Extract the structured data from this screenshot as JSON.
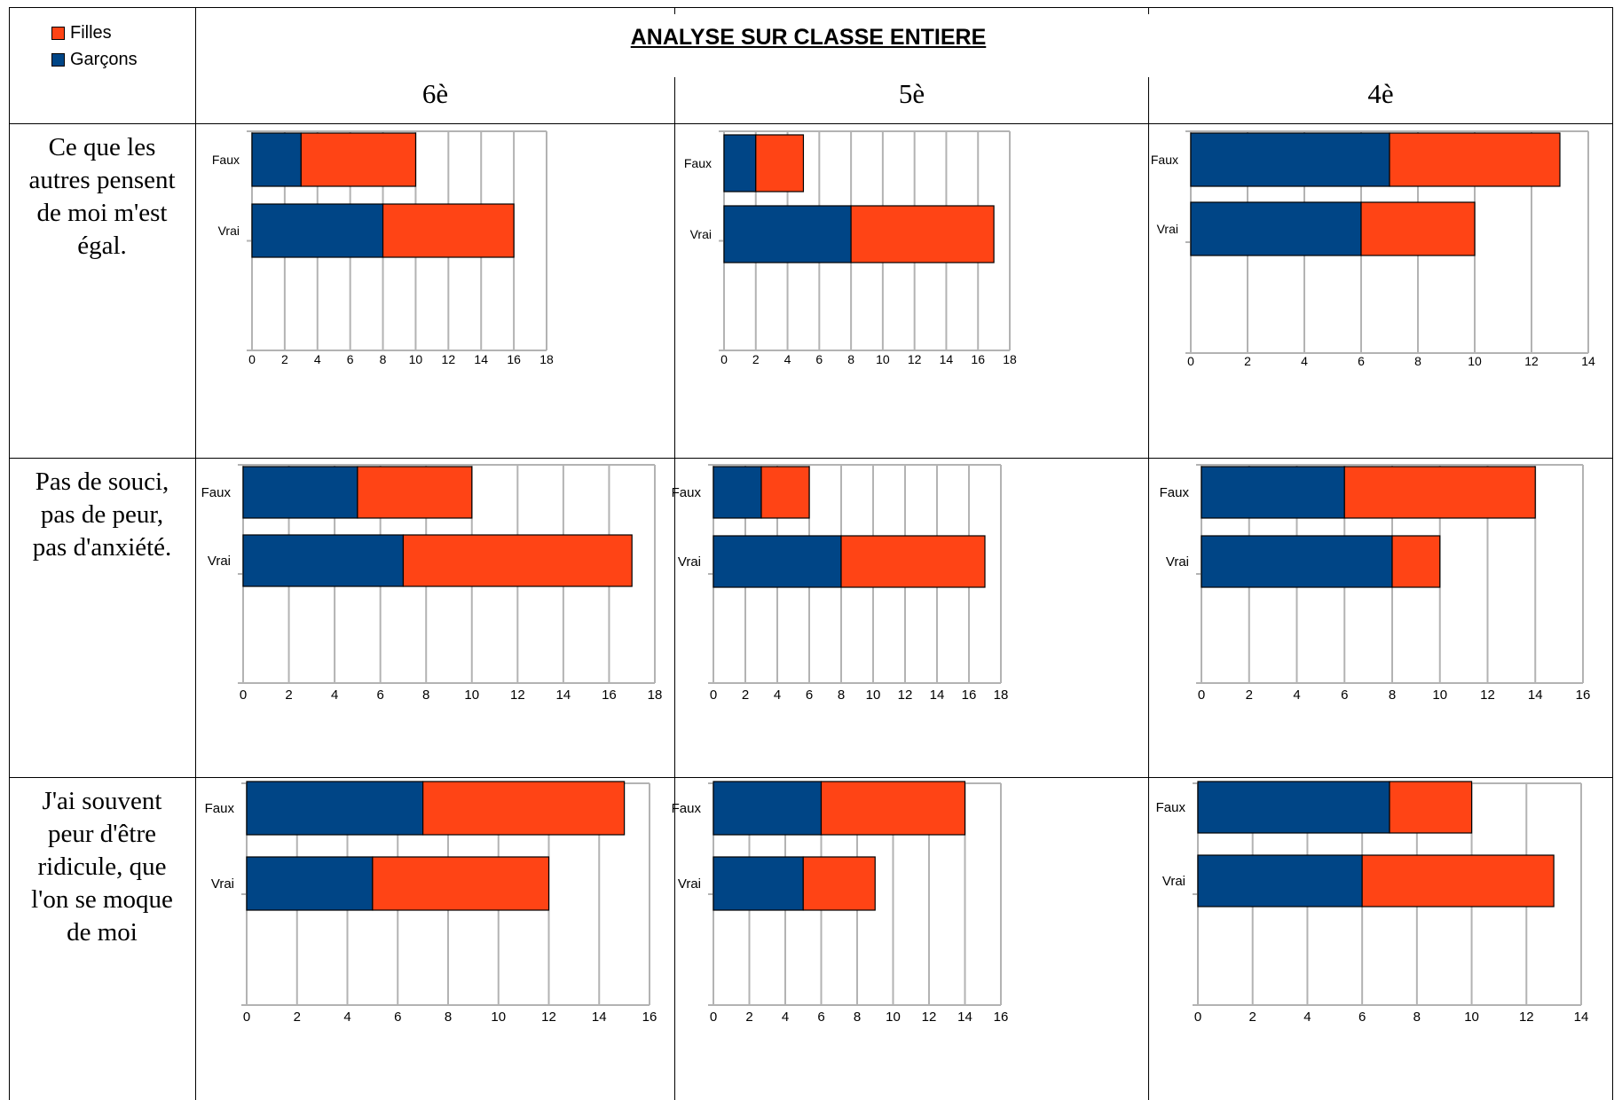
{
  "legend": [
    {
      "name": "Filles",
      "color": "#ff4415"
    },
    {
      "name": "Garçons",
      "color": "#004586"
    }
  ],
  "title": "ANALYSE SUR CLASSE ENTIERE",
  "columns": [
    "6è",
    "5è",
    "4è"
  ],
  "rows": [
    "Ce que les\nautres pensent\nde moi m'est\négal.",
    "Pas de souci,\npas de peur,\npas d'anxiété.",
    "J'ai souvent\npeur d'être\nridicule, que\nl'on se moque\nde moi"
  ],
  "colors": {
    "filles": "#ff4415",
    "garcons": "#004586",
    "grid": "#b3b3b3"
  },
  "chart_data": [
    {
      "type": "bar",
      "orientation": "horizontal",
      "stacked": true,
      "row": 1,
      "column": "6è",
      "categories": [
        "Faux",
        "Vrai"
      ],
      "series": [
        {
          "name": "Garçons",
          "values": [
            3,
            8
          ]
        },
        {
          "name": "Filles",
          "values": [
            7,
            8
          ]
        }
      ],
      "xlim": [
        0,
        18
      ],
      "xticks": [
        0,
        2,
        4,
        6,
        8,
        10,
        12,
        14,
        16,
        18
      ]
    },
    {
      "type": "bar",
      "orientation": "horizontal",
      "stacked": true,
      "row": 1,
      "column": "5è",
      "categories": [
        "Faux",
        "Vrai"
      ],
      "series": [
        {
          "name": "Garçons",
          "values": [
            2,
            8
          ]
        },
        {
          "name": "Filles",
          "values": [
            3,
            9
          ]
        }
      ],
      "xlim": [
        0,
        18
      ],
      "xticks": [
        0,
        2,
        4,
        6,
        8,
        10,
        12,
        14,
        16,
        18
      ]
    },
    {
      "type": "bar",
      "orientation": "horizontal",
      "stacked": true,
      "row": 1,
      "column": "4è",
      "categories": [
        "Faux",
        "Vrai"
      ],
      "series": [
        {
          "name": "Garçons",
          "values": [
            7,
            6
          ]
        },
        {
          "name": "Filles",
          "values": [
            6,
            4
          ]
        }
      ],
      "xlim": [
        0,
        14
      ],
      "xticks": [
        0,
        2,
        4,
        6,
        8,
        10,
        12,
        14
      ]
    },
    {
      "type": "bar",
      "orientation": "horizontal",
      "stacked": true,
      "row": 2,
      "column": "6è",
      "categories": [
        "Faux",
        "Vrai"
      ],
      "series": [
        {
          "name": "Garçons",
          "values": [
            5,
            7
          ]
        },
        {
          "name": "Filles",
          "values": [
            5,
            10
          ]
        }
      ],
      "xlim": [
        0,
        18
      ],
      "xticks": [
        0,
        2,
        4,
        6,
        8,
        10,
        12,
        14,
        16,
        18
      ]
    },
    {
      "type": "bar",
      "orientation": "horizontal",
      "stacked": true,
      "row": 2,
      "column": "5è",
      "categories": [
        "Faux",
        "Vrai"
      ],
      "series": [
        {
          "name": "Garçons",
          "values": [
            3,
            8
          ]
        },
        {
          "name": "Filles",
          "values": [
            3,
            9
          ]
        }
      ],
      "xlim": [
        0,
        18
      ],
      "xticks": [
        0,
        2,
        4,
        6,
        8,
        10,
        12,
        14,
        16,
        18
      ]
    },
    {
      "type": "bar",
      "orientation": "horizontal",
      "stacked": true,
      "row": 2,
      "column": "4è",
      "categories": [
        "Faux",
        "Vrai"
      ],
      "series": [
        {
          "name": "Garçons",
          "values": [
            6,
            8
          ]
        },
        {
          "name": "Filles",
          "values": [
            8,
            2
          ]
        }
      ],
      "xlim": [
        0,
        16
      ],
      "xticks": [
        0,
        2,
        4,
        6,
        8,
        10,
        12,
        14,
        16
      ]
    },
    {
      "type": "bar",
      "orientation": "horizontal",
      "stacked": true,
      "row": 3,
      "column": "6è",
      "categories": [
        "Faux",
        "Vrai"
      ],
      "series": [
        {
          "name": "Garçons",
          "values": [
            7,
            5
          ]
        },
        {
          "name": "Filles",
          "values": [
            8,
            7
          ]
        }
      ],
      "xlim": [
        0,
        16
      ],
      "xticks": [
        0,
        2,
        4,
        6,
        8,
        10,
        12,
        14,
        16
      ]
    },
    {
      "type": "bar",
      "orientation": "horizontal",
      "stacked": true,
      "row": 3,
      "column": "5è",
      "categories": [
        "Faux",
        "Vrai"
      ],
      "series": [
        {
          "name": "Garçons",
          "values": [
            6,
            5
          ]
        },
        {
          "name": "Filles",
          "values": [
            8,
            4
          ]
        }
      ],
      "xlim": [
        0,
        16
      ],
      "xticks": [
        0,
        2,
        4,
        6,
        8,
        10,
        12,
        14,
        16
      ]
    },
    {
      "type": "bar",
      "orientation": "horizontal",
      "stacked": true,
      "row": 3,
      "column": "4è",
      "categories": [
        "Faux",
        "Vrai"
      ],
      "series": [
        {
          "name": "Garçons",
          "values": [
            7,
            6
          ]
        },
        {
          "name": "Filles",
          "values": [
            3,
            7
          ]
        }
      ],
      "xlim": [
        0,
        14
      ],
      "xticks": [
        0,
        2,
        4,
        6,
        8,
        10,
        12,
        14
      ]
    }
  ]
}
